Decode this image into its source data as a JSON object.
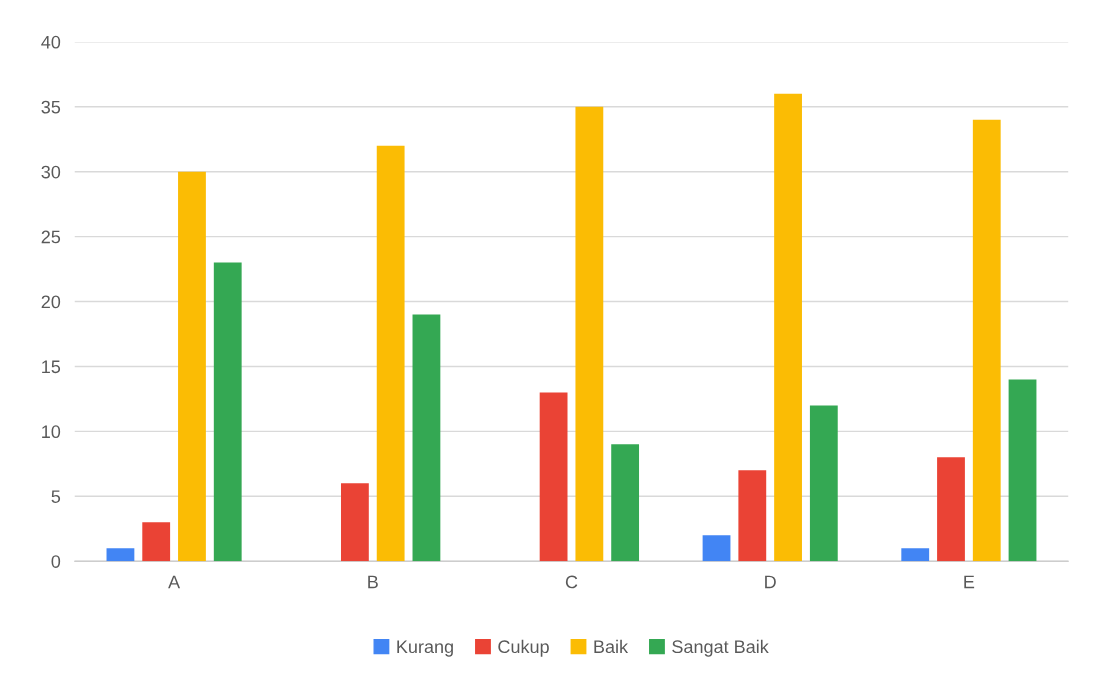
{
  "chart_data": {
    "type": "bar",
    "categories": [
      "A",
      "B",
      "C",
      "D",
      "E"
    ],
    "series": [
      {
        "name": "Kurang",
        "color": "#4285f4",
        "values": [
          1,
          0,
          0,
          2,
          1
        ]
      },
      {
        "name": "Cukup",
        "color": "#ea4335",
        "values": [
          3,
          6,
          13,
          7,
          8
        ]
      },
      {
        "name": "Baik",
        "color": "#fbbc04",
        "values": [
          30,
          32,
          35,
          36,
          34
        ]
      },
      {
        "name": "Sangat Baik",
        "color": "#34a853",
        "values": [
          23,
          19,
          9,
          12,
          14
        ]
      }
    ],
    "ylim": [
      0,
      40
    ],
    "yticks": [
      0,
      5,
      10,
      15,
      20,
      25,
      30,
      35,
      40
    ],
    "grid": "y",
    "legend": "bottom"
  }
}
